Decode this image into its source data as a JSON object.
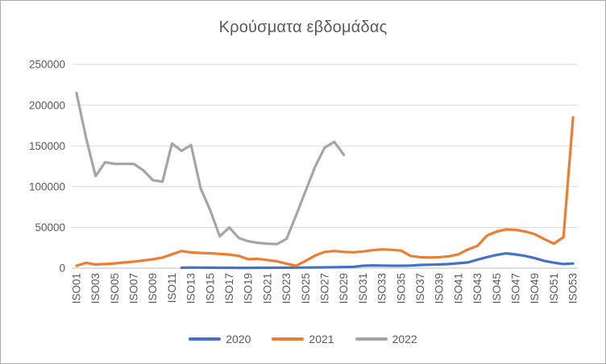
{
  "chart_data": {
    "type": "line",
    "title": "Κρούσματα εβδομάδας",
    "xlabel": "",
    "ylabel": "",
    "ylim": [
      0,
      250000
    ],
    "y_ticks": [
      0,
      50000,
      100000,
      150000,
      200000,
      250000
    ],
    "x_label_every": 2,
    "grid": "horizontal",
    "legend_position": "bottom",
    "categories": [
      "ISO01",
      "ISO02",
      "ISO03",
      "ISO04",
      "ISO05",
      "ISO06",
      "ISO07",
      "ISO08",
      "ISO09",
      "ISO10",
      "ISO11",
      "ISO12",
      "ISO13",
      "ISO14",
      "ISO15",
      "ISO16",
      "ISO17",
      "ISO18",
      "ISO19",
      "ISO20",
      "ISO21",
      "ISO22",
      "ISO23",
      "ISO24",
      "ISO25",
      "ISO26",
      "ISO27",
      "ISO28",
      "ISO29",
      "ISO30",
      "ISO31",
      "ISO32",
      "ISO33",
      "ISO34",
      "ISO35",
      "ISO36",
      "ISO37",
      "ISO38",
      "ISO39",
      "ISO40",
      "ISO41",
      "ISO42",
      "ISO43",
      "ISO44",
      "ISO45",
      "ISO46",
      "ISO47",
      "ISO48",
      "ISO49",
      "ISO50",
      "ISO51",
      "ISO52",
      "ISO53"
    ],
    "series": [
      {
        "name": "2020",
        "color": "#4472C4",
        "values": [
          null,
          null,
          null,
          null,
          null,
          null,
          null,
          null,
          null,
          null,
          null,
          500,
          800,
          700,
          600,
          500,
          450,
          400,
          400,
          450,
          500,
          550,
          600,
          700,
          800,
          900,
          1000,
          1200,
          1400,
          1700,
          3000,
          3400,
          3200,
          3000,
          3000,
          3200,
          4000,
          4200,
          4500,
          5000,
          6000,
          7000,
          10500,
          13500,
          16200,
          18200,
          16800,
          15000,
          12300,
          9000,
          6700,
          5000,
          5700
        ]
      },
      {
        "name": "2021",
        "color": "#ED7D31",
        "values": [
          3000,
          6500,
          4500,
          5000,
          5800,
          7000,
          8000,
          9500,
          11000,
          13000,
          17000,
          21000,
          19400,
          18700,
          18400,
          17500,
          16700,
          15000,
          11000,
          11500,
          10000,
          8400,
          5500,
          3000,
          9000,
          15500,
          20000,
          21000,
          20000,
          19500,
          20500,
          22000,
          23000,
          22500,
          21500,
          15000,
          13400,
          13000,
          13500,
          14500,
          17000,
          23000,
          27500,
          40000,
          45000,
          47500,
          47000,
          45000,
          41700,
          35700,
          30000,
          38000,
          185000
        ]
      },
      {
        "name": "2022",
        "color": "#A5A5A5",
        "values": [
          215000,
          160000,
          113000,
          130000,
          128000,
          128000,
          128000,
          120000,
          108000,
          106000,
          153000,
          144000,
          151000,
          98000,
          71000,
          39000,
          50000,
          37000,
          33000,
          31000,
          30000,
          29500,
          36000,
          65000,
          95000,
          125000,
          148000,
          155000,
          139000,
          null,
          null,
          null,
          null,
          null,
          null,
          null,
          null,
          null,
          null,
          null,
          null,
          null,
          null,
          null,
          null,
          null,
          null,
          null,
          null,
          null,
          null,
          null,
          null
        ]
      }
    ],
    "theme": {
      "text_color": "#595959",
      "grid_color": "#D9D9D9",
      "axis_color": "#BFBFBF",
      "background": "#FFFFFF",
      "border_color": "#ABABAB"
    }
  }
}
